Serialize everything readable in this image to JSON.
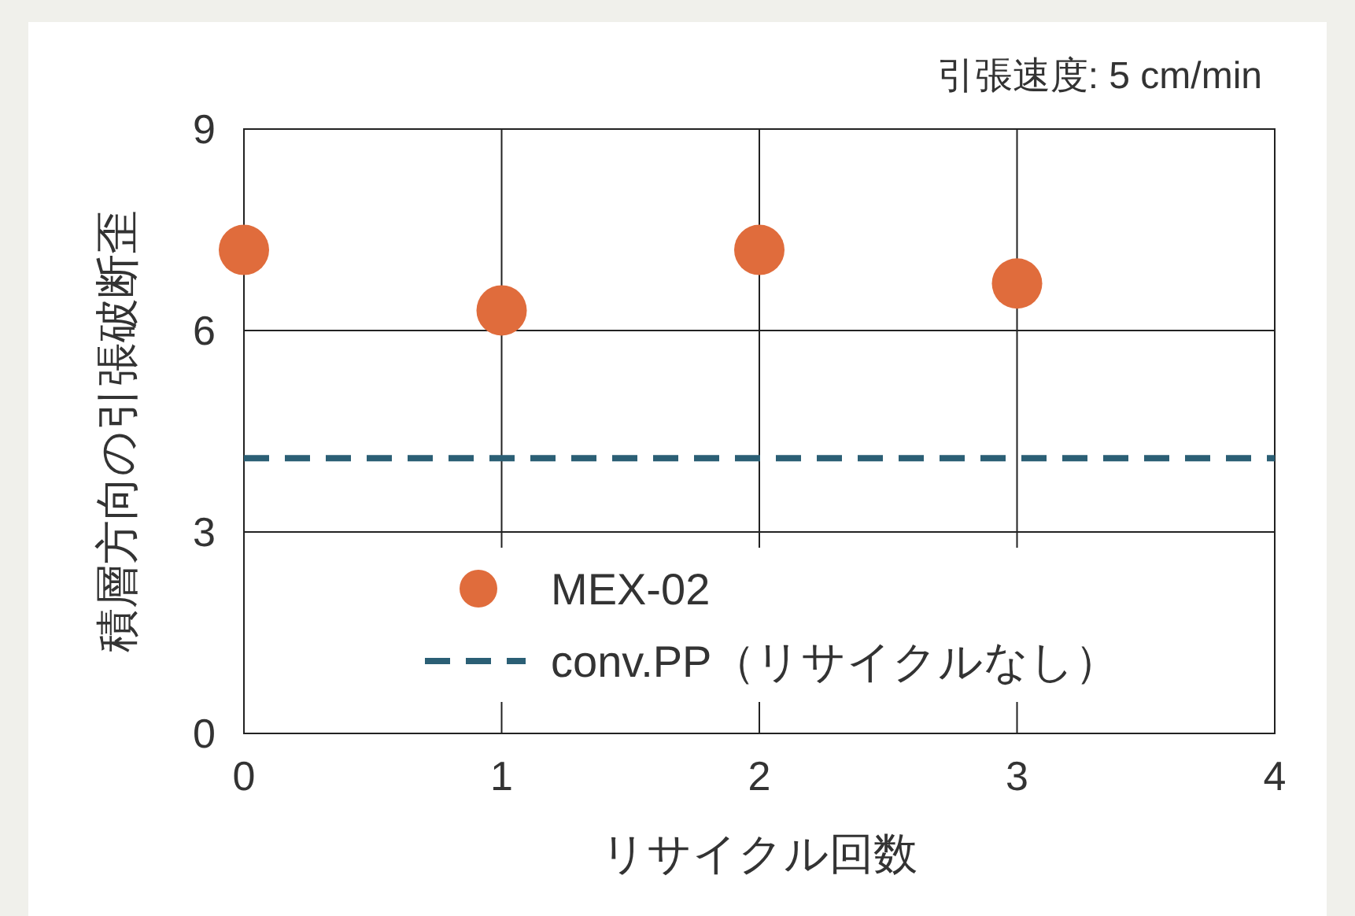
{
  "chart_data": {
    "type": "scatter",
    "xlabel": "リサイクル回数",
    "ylabel": "積層方向の引張破断歪",
    "annotations": [
      "引張速度: 5 cm/min"
    ],
    "x": [
      0,
      1,
      2,
      3
    ],
    "series": [
      {
        "name": "MEX-02",
        "color": "#e06c3c",
        "values": [
          7.2,
          6.3,
          7.2,
          6.7
        ],
        "marker": "circle"
      },
      {
        "name": "conv.PP（リサイクルなし）",
        "type": "line",
        "color": "#2b5f75",
        "x": [
          0,
          4
        ],
        "values": [
          4.1,
          4.1
        ],
        "line_style": "dashed"
      }
    ],
    "xlim": [
      0,
      4
    ],
    "xticks": [
      0,
      1,
      2,
      3,
      4
    ],
    "ylim": [
      0,
      9
    ],
    "yticks": [
      0,
      3,
      6,
      9
    ],
    "grid": true,
    "legend": "bottom"
  }
}
